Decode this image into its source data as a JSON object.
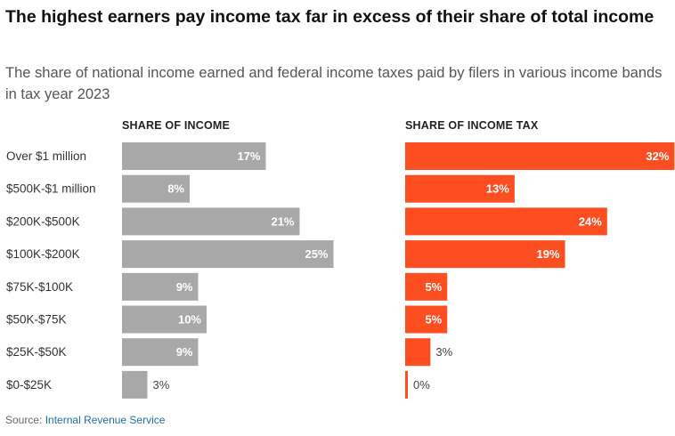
{
  "title": "The highest earners pay income tax far in excess of their share of total income",
  "subtitle": "The share of national income earned and federal income taxes paid by filers in various income bands in tax year 2023",
  "source": {
    "label": "Source: ",
    "link_text": "Internal Revenue Service"
  },
  "colors": {
    "income_bar": "#a8a8a8",
    "tax_bar": "#fc4e21",
    "label_inside": "#ffffff",
    "label_outside": "#444444"
  },
  "chart_data": {
    "type": "bar",
    "orientation": "horizontal",
    "categories": [
      "Over $1 million",
      "$500K-$1 million",
      "$200K-$500K",
      "$100K-$200K",
      "$75K-$100K",
      "$50K-$75K",
      "$25K-$50K",
      "$0-$25K"
    ],
    "series": [
      {
        "name": "SHARE OF INCOME",
        "values": [
          17,
          8,
          21,
          25,
          9,
          10,
          9,
          3
        ]
      },
      {
        "name": "SHARE OF INCOME TAX",
        "values": [
          32,
          13,
          24,
          19,
          5,
          5,
          3,
          0
        ]
      }
    ],
    "value_suffix": "%",
    "grid": false
  }
}
